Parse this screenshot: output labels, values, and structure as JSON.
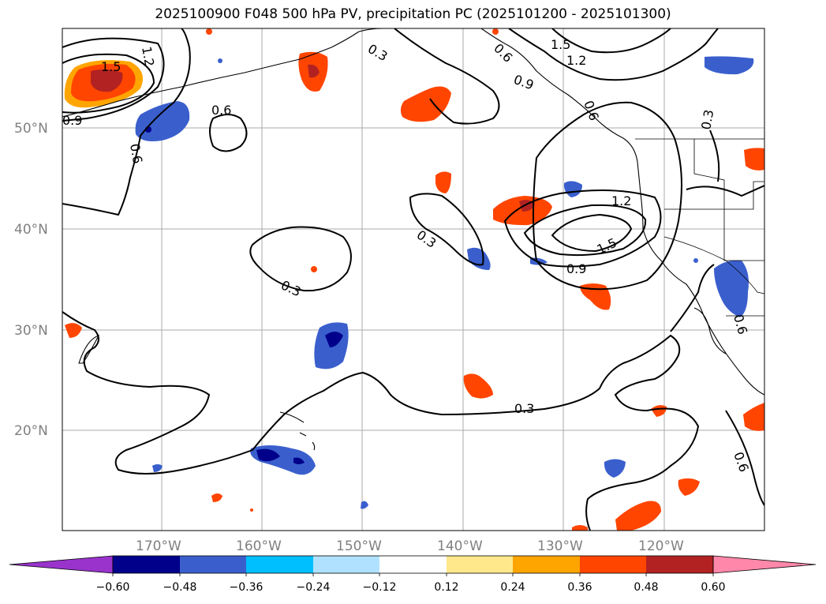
{
  "title": "2025100900 F048 500 hPa PV, precipitation PC (2025101200 - 2025101300)",
  "map": {
    "lat_labels": [
      "50°N",
      "40°N",
      "30°N",
      "20°N"
    ],
    "lon_labels": [
      "170°W",
      "160°W",
      "150°W",
      "140°W",
      "130°W",
      "120°W"
    ],
    "gridline_color": "#aaaaaa",
    "contour_color": "#000000",
    "contour_labels": [
      "1.5",
      "1.2",
      "0.9",
      "0.6",
      "0.3",
      "0.3",
      "0.6",
      "1.5",
      "1.2",
      "0.9",
      "0.6",
      "0.3",
      "1.2",
      "1.5",
      "0.9",
      "0.3",
      "0.6",
      "0.3",
      "0.6",
      "0.6"
    ]
  },
  "colorbar": {
    "labels": [
      "−0.60",
      "−0.48",
      "−0.36",
      "−0.24",
      "−0.12",
      "0.12",
      "0.24",
      "0.36",
      "0.48",
      "0.60"
    ],
    "colors": [
      "#9933cc",
      "#00008b",
      "#3a5fcd",
      "#00bfff",
      "#b0e2ff",
      "#ffffff",
      "#ffe88c",
      "#ffa500",
      "#ff4500",
      "#b22222",
      "#ff88aa"
    ]
  },
  "precip_colors": {
    "strong_pos": "#b22222",
    "pos": "#ff4500",
    "weak_pos": "#ffa500",
    "faint_pos": "#ffe88c",
    "strong_neg": "#00008b",
    "neg": "#3a5fcd",
    "weak_neg": "#00bfff"
  }
}
